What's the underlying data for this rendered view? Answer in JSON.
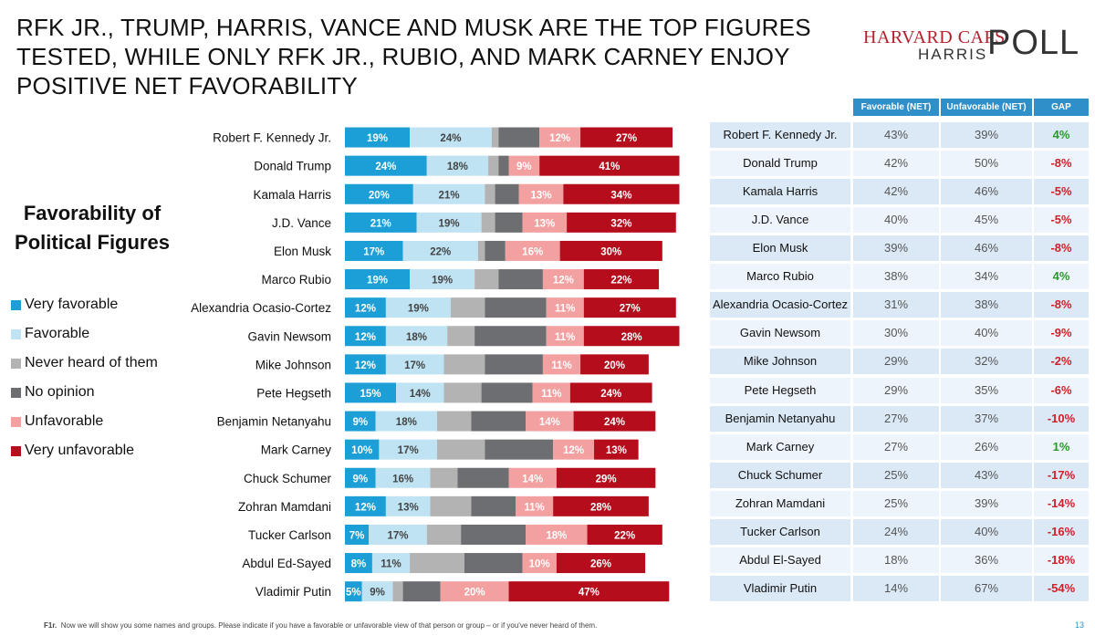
{
  "title_lines": [
    "RFK JR., TRUMP, HARRIS, VANCE AND MUSK ARE THE TOP FIGURES",
    "TESTED, WHILE ONLY RFK JR., RUBIO, AND MARK CARNEY ENJOY",
    "POSITIVE NET FAVORABILITY"
  ],
  "logo": {
    "line1": "HARVARD CAPS",
    "line2": "HARRIS",
    "line3": "POLL"
  },
  "subtitle": "Favorability of Political Figures",
  "legend": [
    {
      "label": "Very favorable",
      "color": "#1b9fd6"
    },
    {
      "label": "Favorable",
      "color": "#bfe3f3"
    },
    {
      "label": "Never heard of them",
      "color": "#b3b3b3"
    },
    {
      "label": "No opinion",
      "color": "#6d6e71"
    },
    {
      "label": "Unfavorable",
      "color": "#f3a0a0"
    },
    {
      "label": "Very unfavorable",
      "color": "#b50d1b"
    }
  ],
  "table_headers": [
    "Favorable (NET)",
    "Unfavorable (NET)",
    "GAP"
  ],
  "chart_data": {
    "type": "bar",
    "orientation": "horizontal",
    "stacked": true,
    "categories": [
      "Robert F. Kennedy Jr.",
      "Donald Trump",
      "Kamala Harris",
      "J.D. Vance",
      "Elon Musk",
      "Marco Rubio",
      "Alexandria Ocasio-Cortez",
      "Gavin Newsom",
      "Mike Johnson",
      "Pete Hegseth",
      "Benjamin Netanyahu",
      "Mark Carney",
      "Chuck Schumer",
      "Zohran Mamdani",
      "Tucker Carlson",
      "Abdul Ed-Sayed",
      "Vladimir Putin"
    ],
    "series": [
      {
        "name": "Very favorable",
        "values": [
          19,
          24,
          20,
          21,
          17,
          19,
          12,
          12,
          12,
          15,
          9,
          10,
          9,
          12,
          7,
          8,
          5
        ]
      },
      {
        "name": "Favorable",
        "values": [
          24,
          18,
          21,
          19,
          22,
          19,
          19,
          18,
          17,
          14,
          18,
          17,
          16,
          13,
          17,
          11,
          9
        ]
      },
      {
        "name": "Never heard of them",
        "values": [
          2,
          3,
          3,
          4,
          2,
          7,
          10,
          8,
          12,
          11,
          10,
          14,
          8,
          12,
          10,
          16,
          3
        ]
      },
      {
        "name": "No opinion",
        "values": [
          12,
          3,
          7,
          8,
          6,
          13,
          18,
          21,
          17,
          15,
          16,
          20,
          15,
          13,
          19,
          17,
          11
        ]
      },
      {
        "name": "Unfavorable",
        "values": [
          12,
          9,
          13,
          13,
          16,
          12,
          11,
          11,
          11,
          11,
          14,
          12,
          14,
          11,
          18,
          10,
          20
        ]
      },
      {
        "name": "Very unfavorable",
        "values": [
          27,
          41,
          34,
          32,
          30,
          22,
          27,
          28,
          20,
          24,
          24,
          13,
          29,
          28,
          22,
          26,
          47
        ]
      }
    ],
    "labeled_series": [
      "Very favorable",
      "Favorable",
      "Unfavorable",
      "Very unfavorable"
    ],
    "xlim": [
      0,
      100
    ]
  },
  "table": [
    {
      "name": "Robert F. Kennedy Jr.",
      "fav": "43%",
      "unfav": "39%",
      "gap": "4%",
      "positive": true
    },
    {
      "name": "Donald Trump",
      "fav": "42%",
      "unfav": "50%",
      "gap": "-8%",
      "positive": false
    },
    {
      "name": "Kamala Harris",
      "fav": "42%",
      "unfav": "46%",
      "gap": "-5%",
      "positive": false
    },
    {
      "name": "J.D. Vance",
      "fav": "40%",
      "unfav": "45%",
      "gap": "-5%",
      "positive": false
    },
    {
      "name": "Elon Musk",
      "fav": "39%",
      "unfav": "46%",
      "gap": "-8%",
      "positive": false
    },
    {
      "name": "Marco Rubio",
      "fav": "38%",
      "unfav": "34%",
      "gap": "4%",
      "positive": true
    },
    {
      "name": "Alexandria Ocasio-Cortez",
      "fav": "31%",
      "unfav": "38%",
      "gap": "-8%",
      "positive": false
    },
    {
      "name": "Gavin Newsom",
      "fav": "30%",
      "unfav": "40%",
      "gap": "-9%",
      "positive": false
    },
    {
      "name": "Mike Johnson",
      "fav": "29%",
      "unfav": "32%",
      "gap": "-2%",
      "positive": false
    },
    {
      "name": "Pete Hegseth",
      "fav": "29%",
      "unfav": "35%",
      "gap": "-6%",
      "positive": false
    },
    {
      "name": "Benjamin Netanyahu",
      "fav": "27%",
      "unfav": "37%",
      "gap": "-10%",
      "positive": false
    },
    {
      "name": "Mark Carney",
      "fav": "27%",
      "unfav": "26%",
      "gap": "1%",
      "positive": true
    },
    {
      "name": "Chuck Schumer",
      "fav": "25%",
      "unfav": "43%",
      "gap": "-17%",
      "positive": false
    },
    {
      "name": "Zohran Mamdani",
      "fav": "25%",
      "unfav": "39%",
      "gap": "-14%",
      "positive": false
    },
    {
      "name": "Tucker Carlson",
      "fav": "24%",
      "unfav": "40%",
      "gap": "-16%",
      "positive": false
    },
    {
      "name": "Abdul El-Sayed",
      "fav": "18%",
      "unfav": "36%",
      "gap": "-18%",
      "positive": false
    },
    {
      "name": "Vladimir Putin",
      "fav": "14%",
      "unfav": "67%",
      "gap": "-54%",
      "positive": false
    }
  ],
  "footnote_prefix": "F1r.",
  "footnote": "Now we will show you some names and groups. Please indicate if you have a favorable or unfavorable view of that person or group – or if you've never heard of them.",
  "page_number": "13"
}
